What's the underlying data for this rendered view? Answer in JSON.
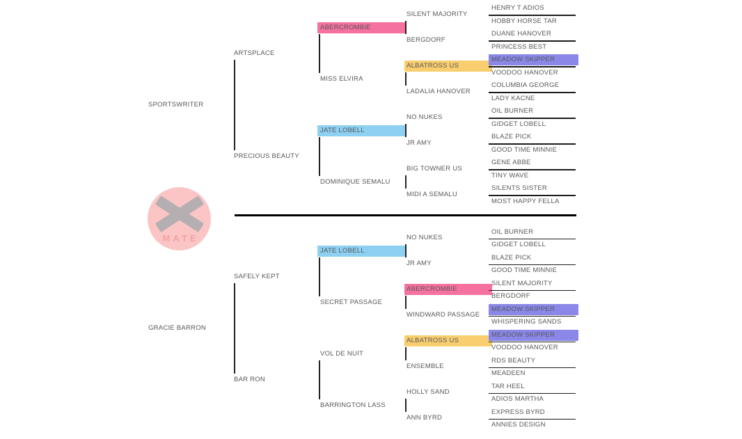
{
  "logo": {
    "mark": "X",
    "name": "MATE"
  },
  "colors": {
    "pink": "#f5719f",
    "yellow": "#f8ce6e",
    "blue": "#8dd0f2",
    "purple": "#8a87e8",
    "text": "#58585b",
    "line": "#1a1a1a",
    "logo_circle": "#fbc5c5",
    "logo_x": "#b5afb1",
    "logo_mate": "#f2a2a2"
  },
  "pedigree": {
    "gen1": [
      {
        "label": "SPORTSWRITER"
      },
      {
        "label": "GRACIE BARRON"
      }
    ],
    "gen2": [
      {
        "label": "ARTSPLACE"
      },
      {
        "label": "PRECIOUS BEAUTY"
      },
      {
        "label": "SAFELY KEPT"
      },
      {
        "label": "BAR RON"
      }
    ],
    "gen3": [
      {
        "label": "ABERCROMBIE",
        "highlight": "pink"
      },
      {
        "label": "MISS ELVIRA"
      },
      {
        "label": "JATE LOBELL",
        "highlight": "blue"
      },
      {
        "label": "DOMINIQUE SEMALU"
      },
      {
        "label": "JATE LOBELL",
        "highlight": "blue"
      },
      {
        "label": "SECRET PASSAGE"
      },
      {
        "label": "VOL DE NUIT"
      },
      {
        "label": "BARRINGTON LASS"
      }
    ],
    "gen4": [
      {
        "label": "SILENT MAJORITY"
      },
      {
        "label": "BERGDORF"
      },
      {
        "label": "ALBATROSS US",
        "highlight": "yellow"
      },
      {
        "label": "LADALIA HANOVER"
      },
      {
        "label": "NO NUKES"
      },
      {
        "label": "JR AMY"
      },
      {
        "label": "BIG TOWNER US"
      },
      {
        "label": "MIDI A SEMALU"
      },
      {
        "label": "NO NUKES"
      },
      {
        "label": "JR AMY"
      },
      {
        "label": "ABERCROMBIE",
        "highlight": "pink"
      },
      {
        "label": "WINDWARD PASSAGE"
      },
      {
        "label": "ALBATROSS US",
        "highlight": "yellow"
      },
      {
        "label": "ENSEMBLE"
      },
      {
        "label": "HOLLY SAND"
      },
      {
        "label": "ANN BYRD"
      }
    ],
    "gen5": [
      {
        "label": "HENRY T ADIOS"
      },
      {
        "label": "HOBBY HORSE TAR"
      },
      {
        "label": "DUANE HANOVER"
      },
      {
        "label": "PRINCESS BEST"
      },
      {
        "label": "MEADOW SKIPPER",
        "highlight": "purple"
      },
      {
        "label": "VOODOO HANOVER"
      },
      {
        "label": "COLUMBIA GEORGE"
      },
      {
        "label": "LADY KACNE"
      },
      {
        "label": "OIL BURNER"
      },
      {
        "label": "GIDGET LOBELL"
      },
      {
        "label": "BLAZE PICK"
      },
      {
        "label": "GOOD TIME MINNIE"
      },
      {
        "label": "GENE ABBE"
      },
      {
        "label": "TINY WAVE"
      },
      {
        "label": "SILENTS SISTER"
      },
      {
        "label": "MOST HAPPY FELLA"
      },
      {
        "label": "OIL BURNER"
      },
      {
        "label": "GIDGET LOBELL"
      },
      {
        "label": "BLAZE PICK"
      },
      {
        "label": "GOOD TIME MINNIE"
      },
      {
        "label": "SILENT MAJORITY"
      },
      {
        "label": "BERGDORF"
      },
      {
        "label": "MEADOW SKIPPER",
        "highlight": "purple"
      },
      {
        "label": "WHISPERING SANDS"
      },
      {
        "label": "MEADOW SKIPPER",
        "highlight": "purple"
      },
      {
        "label": "VOODOO HANOVER"
      },
      {
        "label": "RDS BEAUTY"
      },
      {
        "label": "MEADEEN"
      },
      {
        "label": "TAR HEEL"
      },
      {
        "label": "ADIOS MARTHA"
      },
      {
        "label": "EXPRESS BYRD"
      },
      {
        "label": "ANNIES DESIGN"
      }
    ]
  }
}
